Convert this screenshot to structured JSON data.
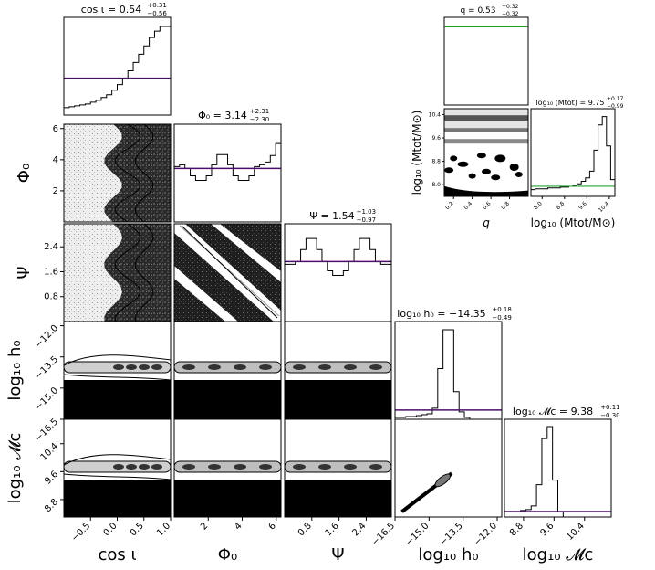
{
  "chart_data": [
    {
      "type": "corner",
      "parameters": [
        {
          "label": "cos ι",
          "title": "cos ι = 0.54",
          "sup": "+0.31",
          "sub": "−0.56",
          "range": [
            -1,
            1
          ],
          "ticks": [
            "−0.5",
            "0.0",
            "0.5",
            "1.0"
          ],
          "tickvals": [
            -0.5,
            0,
            0.5,
            1
          ]
        },
        {
          "label": "Φ₀",
          "title": "Φ₀ = 3.14",
          "sup": "+2.31",
          "sub": "−2.30",
          "range": [
            0,
            6.28
          ],
          "ticks": [
            "2",
            "4",
            "6"
          ],
          "tickvals": [
            2,
            4,
            6
          ]
        },
        {
          "label": "Ψ",
          "title": "Ψ = 1.54",
          "sup": "+1.03",
          "sub": "−0.97",
          "range": [
            0,
            3.14
          ],
          "ticks": [
            "0.8",
            "1.6",
            "2.4"
          ],
          "tickvals": [
            0.8,
            1.6,
            2.4
          ]
        },
        {
          "label": "log₁₀ h₀",
          "title": "log₁₀ h₀ = −14.35",
          "sup": "+0.18",
          "sub": "−0.49",
          "range": [
            -16.5,
            -11.8
          ],
          "ticks": [
            "−16.5",
            "−15.0",
            "−13.5",
            "−12.0"
          ],
          "tickvals": [
            -16.5,
            -15,
            -13.5,
            -12
          ]
        },
        {
          "label": "log₁₀ 𝓜c",
          "title": "log₁₀ 𝓜c = 9.38",
          "sup": "+0.11",
          "sub": "−0.30",
          "range": [
            8.3,
            11.1
          ],
          "ticks": [
            "8.8",
            "9.6",
            "10.4"
          ],
          "tickvals": [
            8.8,
            9.6,
            10.4
          ]
        }
      ],
      "histograms": [
        {
          "param": 0,
          "counts": [
            0.08,
            0.09,
            0.1,
            0.11,
            0.12,
            0.14,
            0.16,
            0.19,
            0.22,
            0.27,
            0.33,
            0.4,
            0.48,
            0.57,
            0.66,
            0.75,
            0.84,
            0.91,
            0.96,
            0.96
          ],
          "prior": 0.4
        },
        {
          "param": 1,
          "counts": [
            0.6,
            0.62,
            0.58,
            0.5,
            0.45,
            0.45,
            0.5,
            0.62,
            0.73,
            0.73,
            0.62,
            0.5,
            0.45,
            0.45,
            0.5,
            0.6,
            0.62,
            0.65,
            0.72,
            0.85
          ],
          "prior": 0.58
        },
        {
          "param": 2,
          "counts": [
            0.62,
            0.62,
            0.65,
            0.78,
            0.9,
            0.9,
            0.78,
            0.65,
            0.55,
            0.5,
            0.5,
            0.55,
            0.65,
            0.78,
            0.9,
            0.9,
            0.78,
            0.65,
            0.62,
            0.62
          ],
          "prior": 0.65
        },
        {
          "param": 3,
          "counts": [
            0.02,
            0.02,
            0.03,
            0.03,
            0.04,
            0.05,
            0.06,
            0.12,
            0.55,
            0.97,
            0.97,
            0.3,
            0.08,
            0.02,
            0.0,
            0.0,
            0.0,
            0.0,
            0.0,
            0.0
          ],
          "prior": 0.1
        },
        {
          "param": 4,
          "counts": [
            0.06,
            0.06,
            0.06,
            0.07,
            0.08,
            0.12,
            0.35,
            0.85,
            0.98,
            0.4,
            0.06,
            0.0,
            0.0,
            0.0,
            0.0,
            0.0,
            0.0,
            0.0,
            0.0,
            0.0
          ],
          "prior": 0.06
        }
      ],
      "colors": {
        "prior": "#4b0f6b",
        "hist": "#000000",
        "contour_fill": "#9a9a9a"
      },
      "grid": false
    },
    {
      "type": "corner",
      "parameters": [
        {
          "label": "q",
          "title": "q = 0.53",
          "sup": "+0.32",
          "sub": "−0.32",
          "range": [
            0.1,
            1.0
          ],
          "ticks": [
            "0.2",
            "0.4",
            "0.6",
            "0.8"
          ],
          "tickvals": [
            0.2,
            0.4,
            0.6,
            0.8
          ]
        },
        {
          "label": "log₁₀ (Mtot/M⊙)",
          "title": "log₁₀ (Mtot) = 9.75",
          "sup": "+0.17",
          "sub": "−0.99",
          "range": [
            7.6,
            10.6
          ],
          "ticks": [
            "8.0",
            "8.8",
            "9.6",
            "10.4"
          ],
          "tickvals": [
            8.0,
            8.8,
            9.6,
            10.4
          ]
        }
      ],
      "histograms": [
        {
          "param": 0,
          "counts": [
            0.93,
            0.93,
            0.93,
            0.93,
            0.93,
            0.93,
            0.93,
            0.93,
            0.93,
            0.93,
            0.93,
            0.93,
            0.93,
            0.93,
            0.93,
            0.93,
            0.93,
            0.93,
            0.93,
            0.93
          ],
          "prior": 0.93
        },
        {
          "param": 1,
          "counts": [
            0.08,
            0.09,
            0.09,
            0.09,
            0.1,
            0.1,
            0.1,
            0.11,
            0.11,
            0.12,
            0.13,
            0.15,
            0.18,
            0.22,
            0.3,
            0.55,
            0.85,
            0.95,
            0.6,
            0.2
          ],
          "prior": 0.12
        }
      ],
      "colors": {
        "prior": "#2ca02c",
        "hist": "#000000"
      },
      "grid": false
    }
  ]
}
